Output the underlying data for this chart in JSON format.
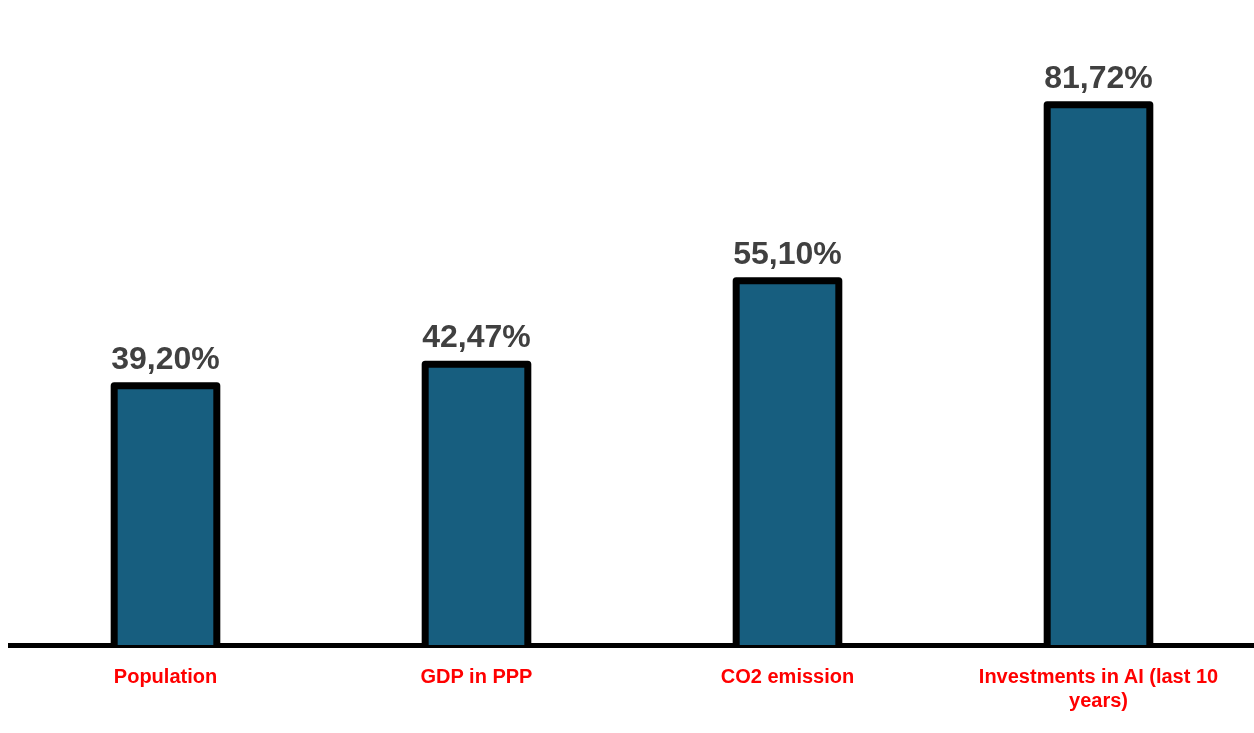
{
  "chart_data": {
    "type": "bar",
    "categories": [
      "Population",
      "GDP in PPP",
      "CO2 emission",
      "Investments in AI (last 10 years)"
    ],
    "values": [
      39.2,
      42.47,
      55.1,
      81.72
    ],
    "color": "#175e7f",
    "value_labels": [
      "39,20%",
      "42,47%",
      "55,10%",
      "81,72%"
    ],
    "tick_labels": "x",
    "grid": false,
    "legend": false
  }
}
